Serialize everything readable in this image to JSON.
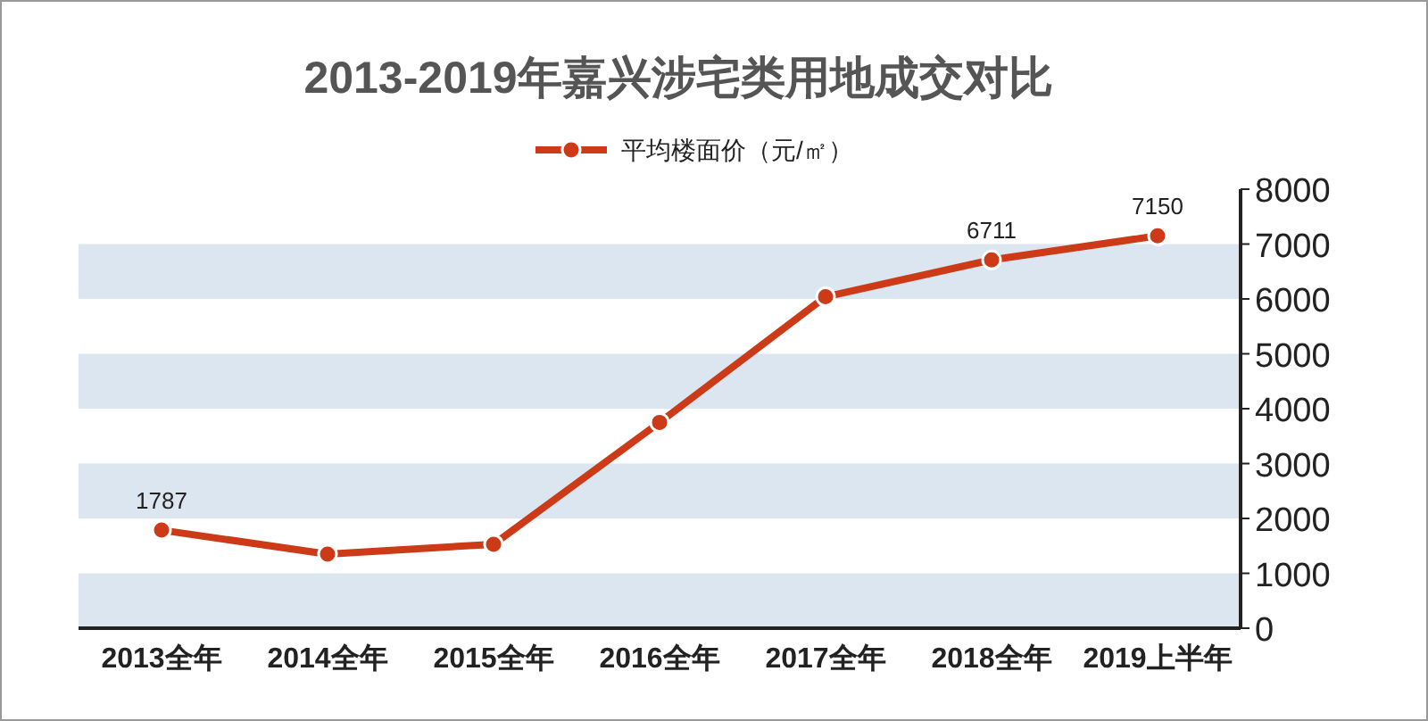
{
  "chart_data": {
    "type": "line",
    "title": "2013-2019年嘉兴涉宅类用地成交对比",
    "categories": [
      "2013全年",
      "2014全年",
      "2015全年",
      "2016全年",
      "2017全年",
      "2018全年",
      "2019上半年"
    ],
    "series": [
      {
        "name": "平均楼面价（元/㎡）",
        "color": "#cc3a17",
        "values": [
          1787,
          1350,
          1530,
          3750,
          6040,
          6711,
          7150
        ],
        "value_labels": [
          "1787",
          null,
          null,
          null,
          null,
          "6711",
          "7150"
        ]
      }
    ],
    "ylim": [
      0,
      8000
    ],
    "yticks": [
      0,
      1000,
      2000,
      3000,
      4000,
      5000,
      6000,
      7000,
      8000
    ],
    "bands": [
      {
        "axis": "y",
        "from": 0,
        "to": 1000,
        "color": "#dce6f0"
      },
      {
        "axis": "y",
        "from": 2000,
        "to": 3000,
        "color": "#dce6f0"
      },
      {
        "axis": "y",
        "from": 4000,
        "to": 5000,
        "color": "#dce6f0"
      },
      {
        "axis": "y",
        "from": 6000,
        "to": 7000,
        "color": "#dce6f0"
      }
    ],
    "legend": "top",
    "marker": "circle",
    "line_style": "solid"
  }
}
